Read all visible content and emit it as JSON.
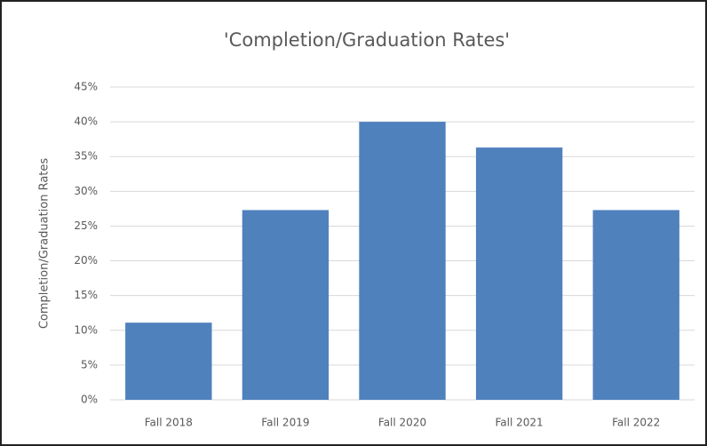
{
  "chart_data": {
    "type": "bar",
    "title": "'Completion/Graduation Rates'",
    "y_label": "Completion/Graduation Rates",
    "categories": [
      "Fall 2018",
      "Fall 2019",
      "Fall 2020",
      "Fall 2021",
      "Fall 2022"
    ],
    "values": [
      11.1,
      27.3,
      40,
      36.3,
      27.3
    ],
    "color": "#4f81bd",
    "ylim": [
      0,
      45
    ],
    "yticks": [
      {
        "value": 0,
        "label": "0%"
      },
      {
        "value": 5,
        "label": "5%"
      },
      {
        "value": 10,
        "label": "10%"
      },
      {
        "value": 15,
        "label": "15%"
      },
      {
        "value": 20,
        "label": "20%"
      },
      {
        "value": 25,
        "label": "25%"
      },
      {
        "value": 30,
        "label": "30%"
      },
      {
        "value": 35,
        "label": "35%"
      },
      {
        "value": 40,
        "label": "40%"
      },
      {
        "value": 45,
        "label": "45%"
      }
    ],
    "grid": true
  }
}
